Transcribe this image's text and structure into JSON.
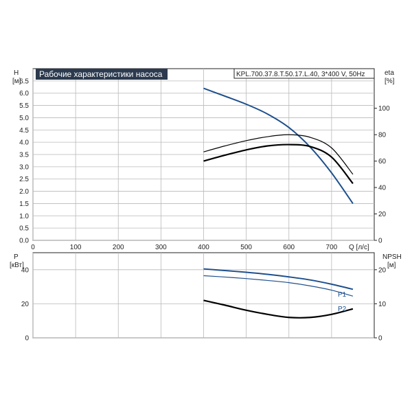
{
  "header": {
    "title": "Рабочие характеристики насоса",
    "model": "KPL.700.37.8.T.50.17.L.40, 3*400 V, 50Hz"
  },
  "colors": {
    "head": "#1d4f8c",
    "power": "#1d4f8c",
    "eta": "#000000",
    "npsh": "#000000",
    "title_bg": "#2b3a4e"
  },
  "top_axes": {
    "left_label": "H",
    "left_unit": "[м]",
    "right_label": "eta",
    "right_unit": "[%]",
    "x_label": "Q [л/с]",
    "y_ticks": [
      "0.0",
      "0.5",
      "1.0",
      "1.5",
      "2.0",
      "2.5",
      "3.0",
      "3.5",
      "4.0",
      "4.5",
      "5.0",
      "5.5",
      "6.0",
      "6.5"
    ],
    "eta_ticks": [
      "0",
      "20",
      "40",
      "60",
      "80",
      "100"
    ],
    "x_ticks": [
      "0",
      "100",
      "200",
      "300",
      "400",
      "500",
      "600",
      "700"
    ]
  },
  "bottom_axes": {
    "left_label": "P",
    "left_unit": "[кВт]",
    "right_label": "NPSH",
    "right_unit": "[м]",
    "y_ticks": [
      "0",
      "20",
      "40"
    ],
    "npsh_ticks": [
      "0",
      "10",
      "20"
    ],
    "p1_label": "P1",
    "p2_label": "P2"
  },
  "chart_data": [
    {
      "type": "line",
      "xlabel": "Q [л/с]",
      "ylabel": "H [м]",
      "y2label": "eta [%]",
      "xlim": [
        0,
        800
      ],
      "ylim": [
        0,
        7
      ],
      "y2lim": [
        0,
        130
      ],
      "grid": true,
      "series": [
        {
          "name": "H",
          "axis": "y",
          "x": [
            400,
            450,
            500,
            550,
            600,
            650,
            700,
            750
          ],
          "values": [
            6.2,
            5.88,
            5.55,
            5.15,
            4.6,
            3.8,
            2.75,
            1.5
          ]
        },
        {
          "name": "eta",
          "axis": "y2",
          "x": [
            400,
            450,
            500,
            550,
            600,
            650,
            700,
            750
          ],
          "values": [
            67,
            71.5,
            75.5,
            78.5,
            80,
            78,
            70,
            50
          ]
        },
        {
          "name": "eta",
          "axis": "y2",
          "x": [
            400,
            450,
            500,
            550,
            600,
            650,
            700,
            750
          ],
          "values": [
            60,
            64.5,
            68.5,
            71.5,
            72.5,
            71,
            63,
            43
          ]
        }
      ]
    },
    {
      "type": "line",
      "xlabel": "",
      "ylabel": "P [кВт]",
      "y2label": "NPSH [м]",
      "xlim": [
        0,
        800
      ],
      "ylim": [
        0,
        50
      ],
      "y2lim": [
        0,
        25
      ],
      "grid": true,
      "series": [
        {
          "name": "P1",
          "axis": "y",
          "x": [
            400,
            450,
            500,
            550,
            600,
            650,
            700,
            750
          ],
          "values": [
            40.5,
            39.5,
            38.5,
            37.3,
            35.8,
            34,
            31.5,
            28.5
          ]
        },
        {
          "name": "P2",
          "axis": "y",
          "x": [
            400,
            450,
            500,
            550,
            600,
            650,
            700,
            750
          ],
          "values": [
            36.5,
            35.7,
            34.8,
            33.7,
            32.4,
            30.5,
            28,
            24.5
          ]
        },
        {
          "name": "NPSH",
          "axis": "y2",
          "x": [
            400,
            450,
            500,
            550,
            600,
            650,
            700,
            750
          ],
          "values": [
            11,
            9.6,
            8.1,
            6.9,
            6.0,
            6.0,
            6.9,
            8.5
          ]
        }
      ]
    }
  ]
}
